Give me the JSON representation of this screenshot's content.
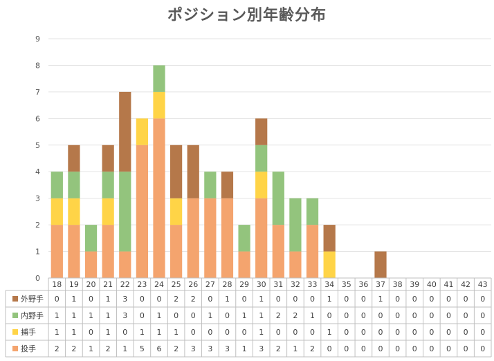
{
  "chart_data": {
    "type": "bar",
    "stacked": true,
    "title": "ポジション別年齢分布",
    "categories": [
      "18",
      "19",
      "20",
      "21",
      "22",
      "23",
      "24",
      "25",
      "26",
      "27",
      "28",
      "29",
      "30",
      "31",
      "32",
      "33",
      "34",
      "35",
      "36",
      "37",
      "38",
      "39",
      "40",
      "41",
      "42",
      "43"
    ],
    "ylim": [
      0,
      9
    ],
    "yticks": [
      0,
      1,
      2,
      3,
      4,
      5,
      6,
      7,
      8,
      9
    ],
    "grid": true,
    "legend": "data-table-left",
    "series": [
      {
        "name": "投手",
        "color": "#F4A46E",
        "values": [
          2,
          2,
          1,
          2,
          1,
          5,
          6,
          2,
          3,
          3,
          3,
          1,
          3,
          2,
          1,
          2,
          0,
          0,
          0,
          0,
          0,
          0,
          0,
          0,
          0,
          0
        ]
      },
      {
        "name": "捕手",
        "color": "#FFD447",
        "values": [
          1,
          1,
          0,
          1,
          0,
          1,
          1,
          1,
          0,
          0,
          0,
          0,
          1,
          0,
          0,
          0,
          1,
          0,
          0,
          0,
          0,
          0,
          0,
          0,
          0,
          0
        ]
      },
      {
        "name": "内野手",
        "color": "#93C47D",
        "values": [
          1,
          1,
          1,
          1,
          3,
          0,
          1,
          0,
          0,
          1,
          0,
          1,
          1,
          2,
          2,
          1,
          0,
          0,
          0,
          0,
          0,
          0,
          0,
          0,
          0,
          0
        ]
      },
      {
        "name": "外野手",
        "color": "#B5784A",
        "values": [
          0,
          1,
          0,
          1,
          3,
          0,
          0,
          2,
          2,
          0,
          1,
          0,
          1,
          0,
          0,
          0,
          1,
          0,
          0,
          1,
          0,
          0,
          0,
          0,
          0,
          0
        ]
      }
    ],
    "table_row_order": [
      "外野手",
      "内野手",
      "捕手",
      "投手"
    ]
  }
}
